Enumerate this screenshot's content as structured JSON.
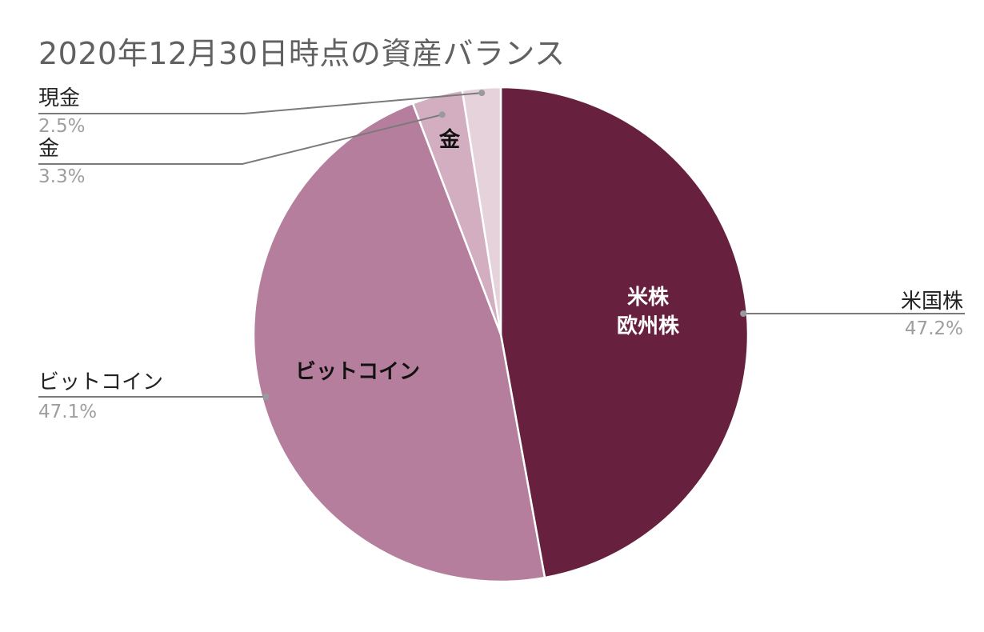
{
  "chart_data": {
    "type": "pie",
    "title": "2020年12月30日時点の資産バランス",
    "slices": [
      {
        "name": "米国株",
        "value": 47.2,
        "value_label": "47.2%",
        "inner_label": [
          "米株",
          "欧州株"
        ],
        "color": "#67213f",
        "inner_label_color": "#ffffff"
      },
      {
        "name": "ビットコイン",
        "value": 47.1,
        "value_label": "47.1%",
        "inner_label": [
          "ビットコイン"
        ],
        "color": "#b47e9c",
        "inner_label_color": "#111111"
      },
      {
        "name": "金",
        "value": 3.3,
        "value_label": "3.3%",
        "inner_label": [
          "金"
        ],
        "color": "#d2aec0",
        "inner_label_color": "#111111"
      },
      {
        "name": "現金",
        "value": 2.5,
        "value_label": "2.5%",
        "inner_label": [],
        "color": "#e5d2db",
        "inner_label_color": "#111111"
      }
    ],
    "start_angle": "12 o'clock",
    "direction": "clockwise",
    "legend": "external labels with leader lines"
  }
}
